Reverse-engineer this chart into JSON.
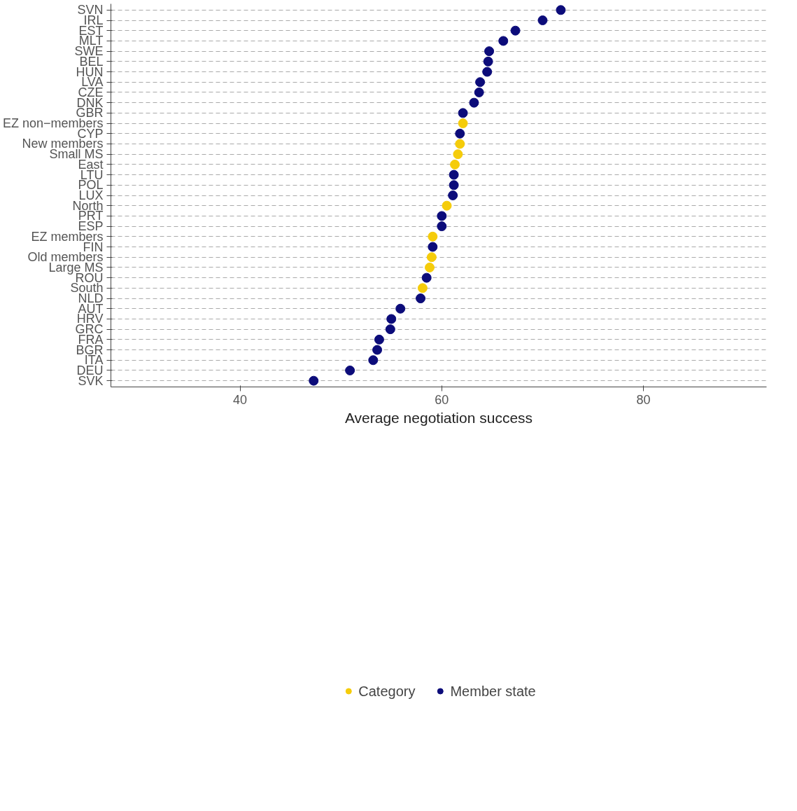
{
  "chart_data": {
    "type": "scatter",
    "xlabel": "Average negotiation success",
    "categories": [
      "SVN",
      "IRL",
      "EST",
      "MLT",
      "SWE",
      "BEL",
      "HUN",
      "LVA",
      "CZE",
      "DNK",
      "GBR",
      "EZ non−members",
      "CYP",
      "New members",
      "Small MS",
      "East",
      "LTU",
      "POL",
      "LUX",
      "North",
      "PRT",
      "ESP",
      "EZ members",
      "FIN",
      "Old members",
      "Large MS",
      "ROU",
      "South",
      "NLD",
      "AUT",
      "HRV",
      "GRC",
      "FRA",
      "BGR",
      "ITA",
      "DEU",
      "SVK"
    ],
    "series": [
      {
        "name": "Category",
        "color": "#f5cc0a",
        "values": [
          null,
          null,
          null,
          null,
          null,
          null,
          null,
          null,
          null,
          null,
          null,
          62.1,
          null,
          61.8,
          61.6,
          61.3,
          null,
          null,
          null,
          60.5,
          null,
          null,
          59.1,
          null,
          59.0,
          58.8,
          null,
          58.1,
          null,
          null,
          null,
          null,
          null,
          null,
          null,
          null,
          null
        ]
      },
      {
        "name": "Member state",
        "color": "#0c0c7a",
        "values": [
          71.8,
          70.0,
          67.3,
          66.1,
          64.7,
          64.6,
          64.5,
          63.8,
          63.7,
          63.2,
          62.1,
          null,
          61.8,
          null,
          null,
          null,
          61.2,
          61.2,
          61.1,
          null,
          60.0,
          60.0,
          null,
          59.1,
          null,
          null,
          58.5,
          null,
          57.9,
          55.9,
          55.0,
          54.9,
          53.8,
          53.6,
          53.2,
          50.9,
          47.3
        ]
      }
    ],
    "xlim": [
      27.2,
      92.2
    ],
    "xticks": [
      40,
      60,
      80
    ],
    "orientation": "horizontal",
    "grid": "y",
    "legend": "bottom",
    "marker": "circle"
  }
}
